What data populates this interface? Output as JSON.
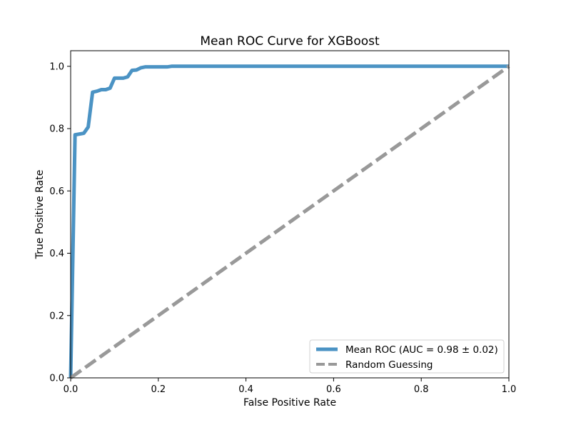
{
  "chart_data": {
    "type": "line",
    "title": "Mean ROC Curve for XGBoost",
    "xlabel": "False Positive Rate",
    "ylabel": "True Positive Rate",
    "xlim": [
      0.0,
      1.0
    ],
    "ylim": [
      0.0,
      1.05
    ],
    "xticks": [
      "0.0",
      "0.2",
      "0.4",
      "0.6",
      "0.8",
      "1.0"
    ],
    "yticks": [
      "0.0",
      "0.2",
      "0.4",
      "0.6",
      "0.8",
      "1.0"
    ],
    "grid": false,
    "legend_position": "lower-right",
    "series": [
      {
        "name": "Mean ROC (AUC = 0.98 ± 0.02)",
        "color": "#4b93c4",
        "style": "solid",
        "x": [
          0.0,
          0.01,
          0.03,
          0.04,
          0.05,
          0.06,
          0.07,
          0.08,
          0.09,
          0.1,
          0.12,
          0.13,
          0.14,
          0.15,
          0.16,
          0.17,
          0.18,
          0.22,
          0.23,
          1.0
        ],
        "y": [
          0.0,
          0.78,
          0.785,
          0.805,
          0.917,
          0.92,
          0.925,
          0.925,
          0.93,
          0.962,
          0.962,
          0.966,
          0.987,
          0.988,
          0.995,
          0.998,
          0.998,
          0.998,
          1.0,
          1.0
        ]
      },
      {
        "name": "Random Guessing",
        "color": "#999999",
        "style": "dashed",
        "x": [
          0.0,
          1.0
        ],
        "y": [
          0.0,
          1.0
        ]
      }
    ]
  }
}
